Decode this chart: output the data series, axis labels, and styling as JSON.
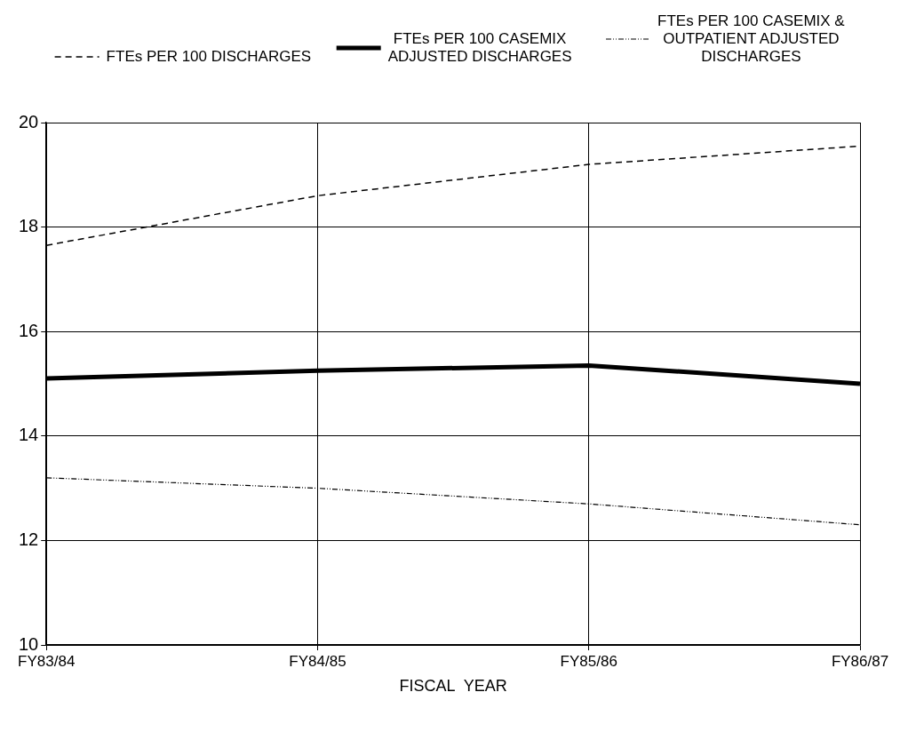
{
  "chart_data": {
    "type": "line",
    "xlabel": "FISCAL  YEAR",
    "categories": [
      "FY83/84",
      "FY84/85",
      "FY85/86",
      "FY86/87"
    ],
    "series": [
      {
        "name": "FTEs PER 100 DISCHARGES",
        "color": "#000000",
        "line_style": "dashed",
        "values": [
          17.65,
          18.6,
          19.2,
          19.55
        ]
      },
      {
        "name": "FTEs PER 100 CASEMIX ADJUSTED DISCHARGES",
        "color": "#000000",
        "line_style": "solid",
        "values": [
          15.1,
          15.25,
          15.35,
          15.0
        ]
      },
      {
        "name": "FTEs PER 100 CASEMIX & OUTPATIENT ADJUSTED DISCHARGES",
        "color": "#000000",
        "line_style": "dotted",
        "values": [
          13.2,
          13.0,
          12.7,
          12.3
        ]
      }
    ],
    "ylim": [
      10,
      20
    ],
    "yticks": [
      10,
      12,
      14,
      16,
      18,
      20
    ],
    "grid": true,
    "legend": "top",
    "marker": "none"
  }
}
